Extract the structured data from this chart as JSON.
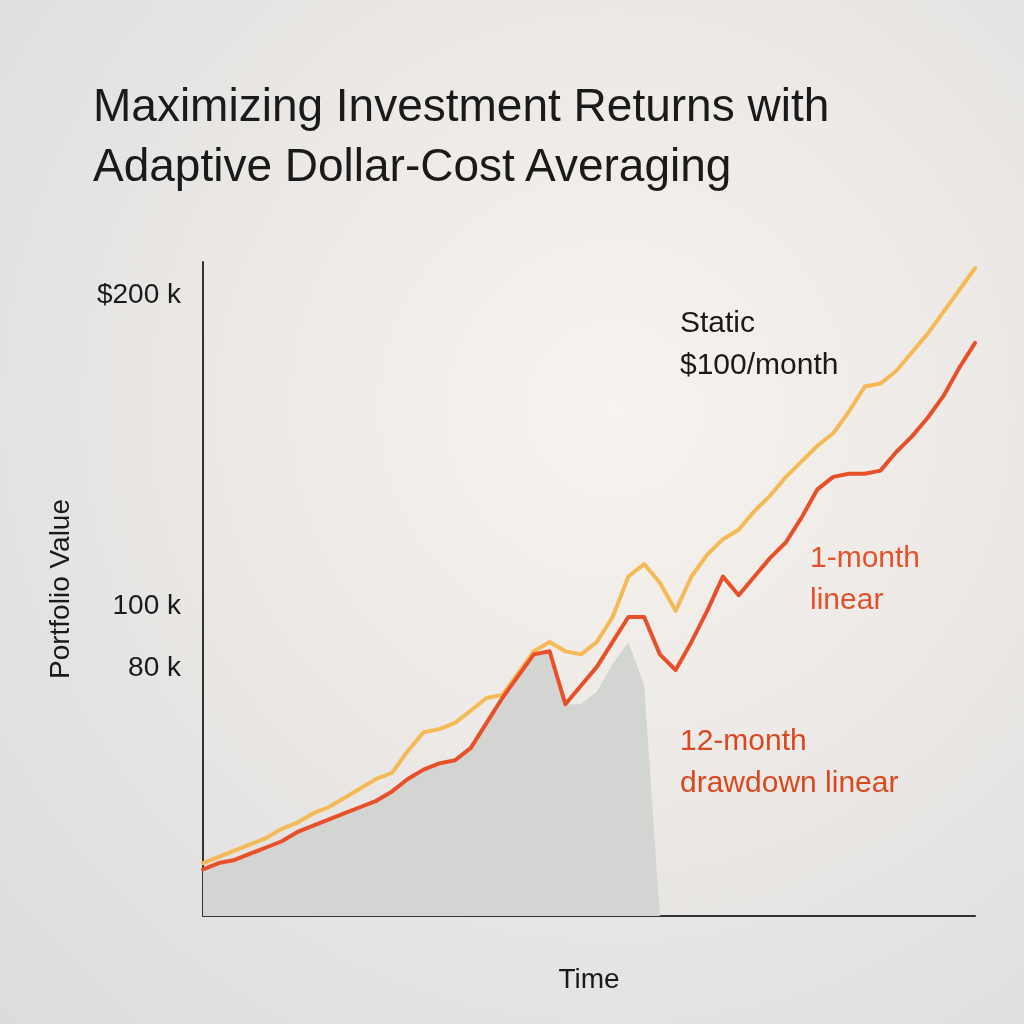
{
  "chart_data": {
    "type": "line",
    "title": "Maximizing Investment Returns with Adaptive Dollar-Cost Averaging",
    "xlabel": "Time",
    "ylabel": "Portfolio Value",
    "categories": [
      null,
      null,
      null,
      null,
      null,
      null,
      null,
      null,
      null,
      null,
      null,
      null,
      null,
      null,
      null,
      null,
      null,
      null,
      null,
      null,
      null,
      null,
      null,
      null,
      null,
      null,
      null,
      null,
      null,
      null,
      null,
      null,
      null,
      null,
      null,
      null,
      null,
      null,
      null,
      null,
      null,
      null,
      null,
      null,
      null,
      null,
      null,
      null,
      null,
      null
    ],
    "ylim": [
      0,
      210000
    ],
    "yticks": [
      {
        "value": 80000,
        "label": "80 k"
      },
      {
        "value": 100000,
        "label": "100 k"
      },
      {
        "value": 200000,
        "label": "$200 k"
      }
    ],
    "annotations": [
      "12-month drawdown linear"
    ],
    "tick_labels": "y",
    "grid": false,
    "legend": false,
    "marker": "none",
    "line_style": "solid",
    "series": [
      {
        "type": "area",
        "color": "#d3d5d3",
        "values": [
          15000,
          17000,
          18000,
          20000,
          22000,
          24000,
          27000,
          29000,
          31000,
          33000,
          35000,
          37000,
          40000,
          44000,
          47000,
          49000,
          50000,
          54000,
          62000,
          70000,
          77000,
          84000,
          85000,
          68000,
          68000,
          72000,
          81000,
          88000,
          74000,
          0,
          null,
          null,
          null,
          null,
          null,
          null,
          null,
          null,
          null,
          null,
          null,
          null,
          null,
          null,
          null,
          null,
          null,
          null,
          null,
          null
        ]
      },
      {
        "name": "Static $100/month",
        "color": "#f5b955",
        "values": [
          17000,
          19000,
          21000,
          23000,
          25000,
          28000,
          30000,
          33000,
          35000,
          38000,
          41000,
          44000,
          46000,
          53000,
          59000,
          60000,
          62000,
          66000,
          70000,
          71000,
          78000,
          85000,
          88000,
          85000,
          84000,
          88000,
          96000,
          109000,
          113000,
          107000,
          98000,
          109000,
          116000,
          121000,
          124000,
          130000,
          135000,
          141000,
          146000,
          151000,
          155000,
          162000,
          170000,
          171000,
          175000,
          181000,
          187000,
          194000,
          201000,
          208000
        ]
      },
      {
        "name": "1-month linear",
        "color": "#e8502a",
        "values": [
          15000,
          17000,
          18000,
          20000,
          22000,
          24000,
          27000,
          29000,
          31000,
          33000,
          35000,
          37000,
          40000,
          44000,
          47000,
          49000,
          50000,
          54000,
          62000,
          70000,
          77000,
          84000,
          85000,
          68000,
          74000,
          80000,
          88000,
          96000,
          96000,
          84000,
          79000,
          88000,
          98000,
          109000,
          103000,
          109000,
          115000,
          120000,
          128000,
          137000,
          141000,
          142000,
          142000,
          143000,
          149000,
          154000,
          160000,
          167000,
          176000,
          184000
        ]
      }
    ]
  }
}
